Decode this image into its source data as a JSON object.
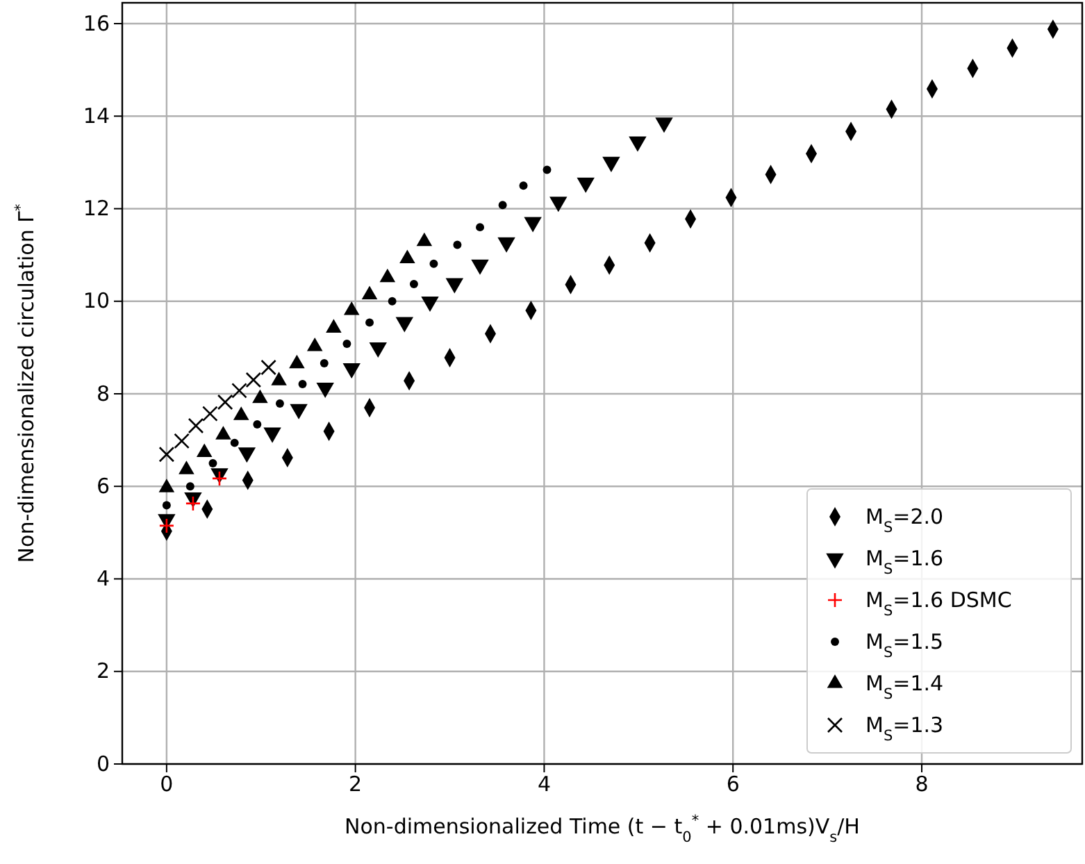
{
  "chart_data": {
    "type": "scatter",
    "xlabel": "Non-dimensionalized Time (t − t$_{0}$$^{*}$ + 0.01ms)V$_{s}$/H",
    "ylabel": "Non-dimensionalized circulation Γ$^{*}$",
    "xlim": [
      -0.47,
      9.7
    ],
    "ylim": [
      0,
      16.45
    ],
    "xticks": [
      0,
      2,
      4,
      6,
      8
    ],
    "yticks": [
      0,
      2,
      4,
      6,
      8,
      10,
      12,
      14,
      16
    ],
    "grid": true,
    "legend": "bottom right",
    "series": [
      {
        "name": "M$_{S}$=2.0",
        "color": "#000000",
        "marker": "diamond",
        "x": [
          0,
          0.43,
          0.86,
          1.28,
          1.72,
          2.15,
          2.57,
          3.0,
          3.43,
          3.86,
          4.28,
          4.69,
          5.12,
          5.55,
          5.98,
          6.4,
          6.83,
          7.25,
          7.68,
          8.11,
          8.54,
          8.96,
          9.39
        ],
        "values": [
          5.03,
          5.51,
          6.13,
          6.62,
          7.19,
          7.7,
          8.28,
          8.78,
          9.3,
          9.8,
          10.36,
          10.78,
          11.26,
          11.78,
          12.24,
          12.74,
          13.19,
          13.67,
          14.15,
          14.59,
          15.03,
          15.47,
          15.88
        ]
      },
      {
        "name": "M$_{S}$=1.6",
        "color": "#000000",
        "marker": "triangle-down",
        "x": [
          0,
          0.28,
          0.56,
          0.85,
          1.12,
          1.4,
          1.68,
          1.96,
          2.24,
          2.52,
          2.79,
          3.05,
          3.32,
          3.6,
          3.88,
          4.15,
          4.44,
          4.71,
          4.99,
          5.27
        ],
        "values": [
          5.29,
          5.76,
          6.28,
          6.73,
          7.16,
          7.67,
          8.13,
          8.55,
          9.0,
          9.55,
          9.99,
          10.39,
          10.79,
          11.27,
          11.71,
          12.15,
          12.56,
          13.01,
          13.45,
          13.86
        ]
      },
      {
        "name": "M$_{S}$=1.6 DSMC",
        "color": "#ff0000",
        "marker": "plus",
        "x": [
          0,
          0.28,
          0.56
        ],
        "values": [
          5.15,
          5.63,
          6.17
        ]
      },
      {
        "name": "M$_{S}$=1.5",
        "color": "#000000",
        "marker": "circle",
        "x": [
          0,
          0.25,
          0.49,
          0.72,
          0.96,
          1.2,
          1.44,
          1.67,
          1.91,
          2.15,
          2.39,
          2.62,
          2.83,
          3.08,
          3.32,
          3.56,
          3.78,
          4.03
        ],
        "values": [
          5.59,
          6.0,
          6.5,
          6.94,
          7.34,
          7.79,
          8.21,
          8.66,
          9.08,
          9.54,
          10.0,
          10.37,
          10.81,
          11.22,
          11.6,
          12.08,
          12.5,
          12.84
        ]
      },
      {
        "name": "M$_{S}$=1.4",
        "color": "#000000",
        "marker": "triangle",
        "x": [
          0,
          0.21,
          0.4,
          0.6,
          0.79,
          0.99,
          1.19,
          1.38,
          1.57,
          1.77,
          1.96,
          2.15,
          2.34,
          2.55,
          2.73
        ],
        "values": [
          5.97,
          6.36,
          6.73,
          7.11,
          7.53,
          7.9,
          8.28,
          8.65,
          9.02,
          9.42,
          9.8,
          10.14,
          10.51,
          10.92,
          11.29
        ]
      },
      {
        "name": "M$_{S}$=1.3",
        "color": "#000000",
        "marker": "cross",
        "x": [
          0,
          0.16,
          0.31,
          0.46,
          0.62,
          0.77,
          0.92,
          1.08
        ],
        "values": [
          6.69,
          6.98,
          7.31,
          7.57,
          7.82,
          8.07,
          8.3,
          8.57
        ]
      }
    ]
  }
}
